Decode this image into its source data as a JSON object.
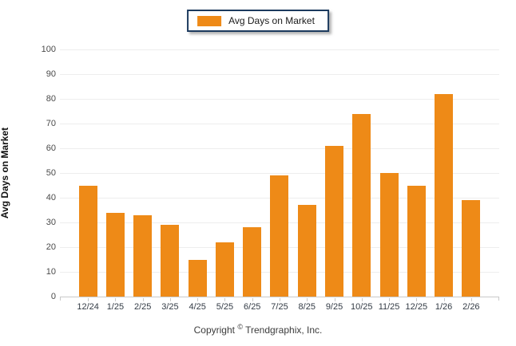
{
  "legend": {
    "label": "Avg Days on Market"
  },
  "colors": {
    "bar": "#EE8A17",
    "legend_border": "#1C3A5E",
    "gridline": "#EDEDED",
    "axis": "#C9C9C9"
  },
  "footer": {
    "pre": "Copyright",
    "symbol": "©",
    "post": " Trendgraphix, Inc."
  },
  "chart_data": {
    "type": "bar",
    "title": "",
    "categories": [
      "12/24",
      "1/25",
      "2/25",
      "3/25",
      "4/25",
      "5/25",
      "6/25",
      "7/25",
      "8/25",
      "9/25",
      "10/25",
      "11/25",
      "12/25",
      "1/26",
      "2/26"
    ],
    "values": [
      45,
      34,
      33,
      29,
      15,
      22,
      28,
      49,
      37,
      61,
      74,
      50,
      45,
      82,
      39
    ],
    "series_name": "Avg Days on Market",
    "xlabel": "",
    "ylabel": "Avg Days on Market",
    "ylim": [
      0,
      100
    ],
    "ytick_step": 10,
    "grid": true,
    "legend_position": "top-center",
    "bar_color": "#EE8A17"
  }
}
